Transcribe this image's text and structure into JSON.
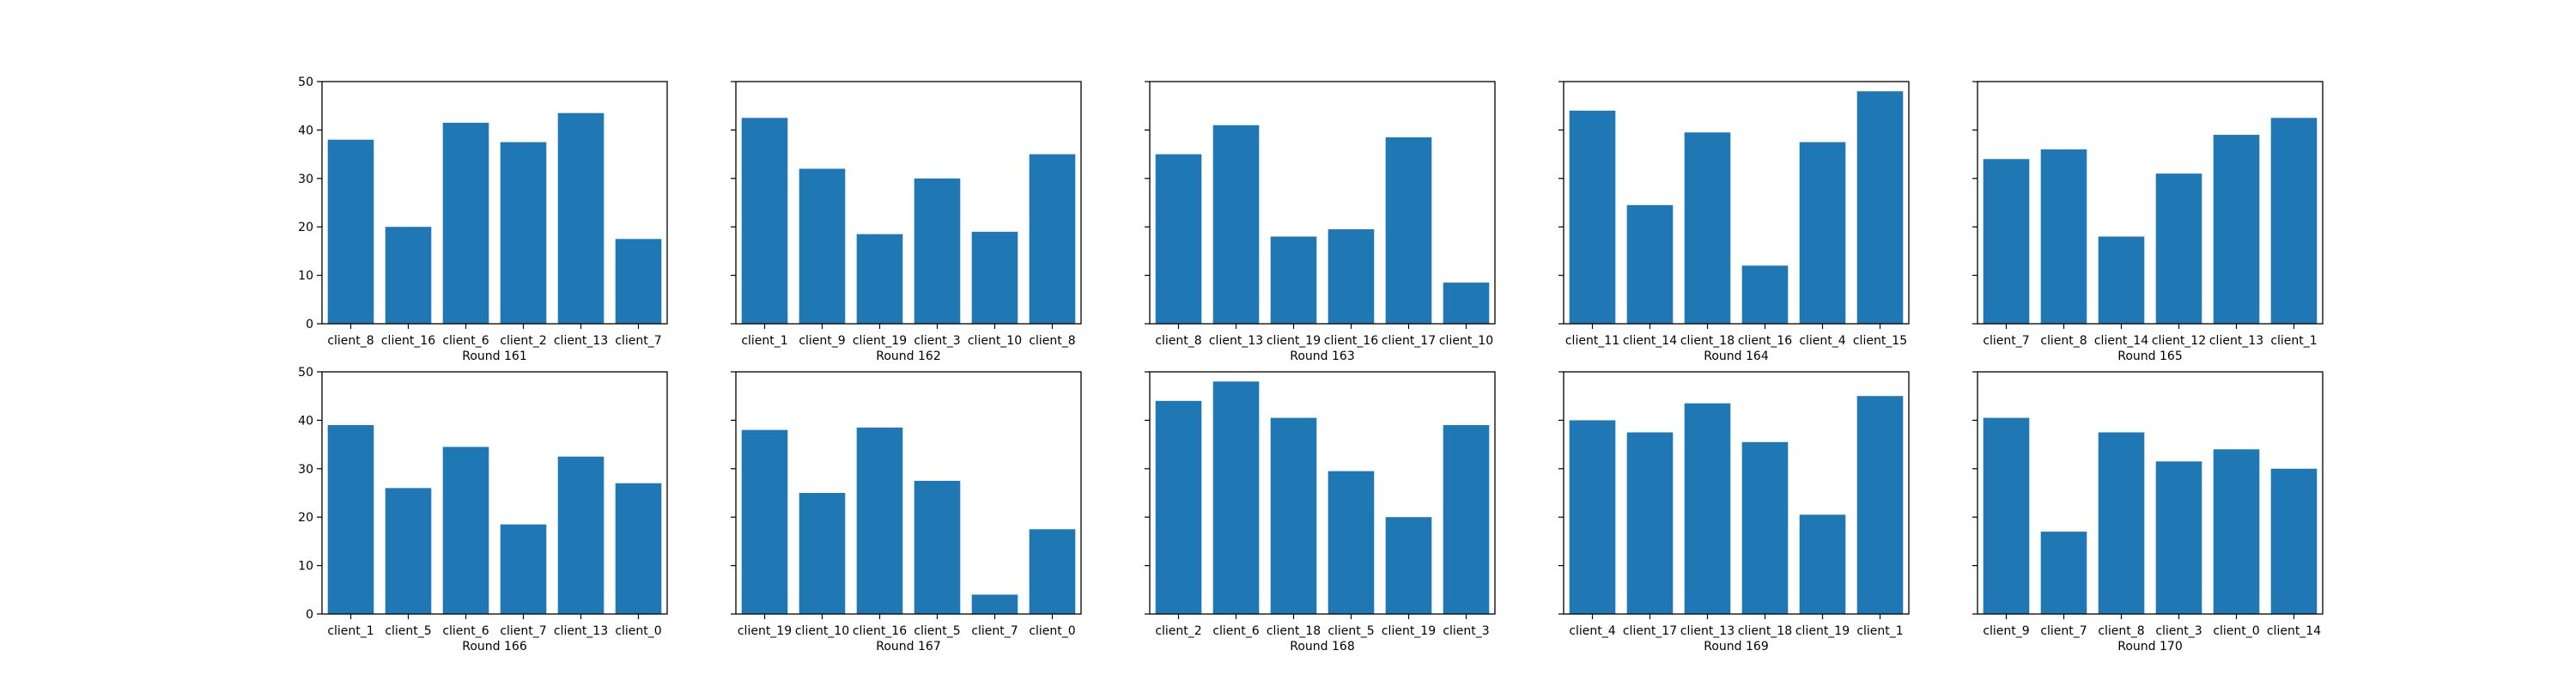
{
  "figure": {
    "background": "#ffffff",
    "bar_color": "#1f77b4",
    "axis_color": "#000000"
  },
  "chart_data": [
    {
      "type": "bar",
      "xlabel": "Round 161",
      "ylabel": "",
      "ylim": [
        0,
        50
      ],
      "yticks": [
        0,
        10,
        20,
        30,
        40,
        50
      ],
      "grid": false,
      "categories": [
        "client_8",
        "client_16",
        "client_6",
        "client_2",
        "client_13",
        "client_7"
      ],
      "values": [
        38,
        20,
        41.5,
        37.5,
        43.5,
        17.5
      ]
    },
    {
      "type": "bar",
      "xlabel": "Round 162",
      "ylabel": "",
      "ylim": [
        0,
        50
      ],
      "yticks": [
        0,
        10,
        20,
        30,
        40,
        50
      ],
      "grid": false,
      "categories": [
        "client_1",
        "client_9",
        "client_19",
        "client_3",
        "client_10",
        "client_8"
      ],
      "values": [
        42.5,
        32,
        18.5,
        30,
        19,
        35
      ]
    },
    {
      "type": "bar",
      "xlabel": "Round 163",
      "ylabel": "",
      "ylim": [
        0,
        50
      ],
      "yticks": [
        0,
        10,
        20,
        30,
        40,
        50
      ],
      "grid": false,
      "categories": [
        "client_8",
        "client_13",
        "client_19",
        "client_16",
        "client_17",
        "client_10"
      ],
      "values": [
        35,
        41,
        18,
        19.5,
        38.5,
        8.5
      ]
    },
    {
      "type": "bar",
      "xlabel": "Round 164",
      "ylabel": "",
      "ylim": [
        0,
        50
      ],
      "yticks": [
        0,
        10,
        20,
        30,
        40,
        50
      ],
      "grid": false,
      "categories": [
        "client_11",
        "client_14",
        "client_18",
        "client_16",
        "client_4",
        "client_15"
      ],
      "values": [
        44,
        24.5,
        39.5,
        12,
        37.5,
        48
      ]
    },
    {
      "type": "bar",
      "xlabel": "Round 165",
      "ylabel": "",
      "ylim": [
        0,
        50
      ],
      "yticks": [
        0,
        10,
        20,
        30,
        40,
        50
      ],
      "grid": false,
      "categories": [
        "client_7",
        "client_8",
        "client_14",
        "client_12",
        "client_13",
        "client_1"
      ],
      "values": [
        34,
        36,
        18,
        31,
        39,
        42.5
      ]
    },
    {
      "type": "bar",
      "xlabel": "Round 166",
      "ylabel": "",
      "ylim": [
        0,
        50
      ],
      "yticks": [
        0,
        10,
        20,
        30,
        40,
        50
      ],
      "grid": false,
      "categories": [
        "client_1",
        "client_5",
        "client_6",
        "client_7",
        "client_13",
        "client_0"
      ],
      "values": [
        39,
        26,
        34.5,
        18.5,
        32.5,
        27
      ]
    },
    {
      "type": "bar",
      "xlabel": "Round 167",
      "ylabel": "",
      "ylim": [
        0,
        50
      ],
      "yticks": [
        0,
        10,
        20,
        30,
        40,
        50
      ],
      "grid": false,
      "categories": [
        "client_19",
        "client_10",
        "client_16",
        "client_5",
        "client_7",
        "client_0"
      ],
      "values": [
        38,
        25,
        38.5,
        27.5,
        4,
        17.5
      ]
    },
    {
      "type": "bar",
      "xlabel": "Round 168",
      "ylabel": "",
      "ylim": [
        0,
        50
      ],
      "yticks": [
        0,
        10,
        20,
        30,
        40,
        50
      ],
      "grid": false,
      "categories": [
        "client_2",
        "client_6",
        "client_18",
        "client_5",
        "client_19",
        "client_3"
      ],
      "values": [
        44,
        48,
        40.5,
        29.5,
        20,
        39
      ]
    },
    {
      "type": "bar",
      "xlabel": "Round 169",
      "ylabel": "",
      "ylim": [
        0,
        50
      ],
      "yticks": [
        0,
        10,
        20,
        30,
        40,
        50
      ],
      "grid": false,
      "categories": [
        "client_4",
        "client_17",
        "client_13",
        "client_18",
        "client_19",
        "client_1"
      ],
      "values": [
        40,
        37.5,
        43.5,
        35.5,
        20.5,
        45
      ]
    },
    {
      "type": "bar",
      "xlabel": "Round 170",
      "ylabel": "",
      "ylim": [
        0,
        50
      ],
      "yticks": [
        0,
        10,
        20,
        30,
        40,
        50
      ],
      "grid": false,
      "categories": [
        "client_9",
        "client_7",
        "client_8",
        "client_3",
        "client_0",
        "client_14"
      ],
      "values": [
        40.5,
        17,
        37.5,
        31.5,
        34,
        30
      ]
    }
  ]
}
